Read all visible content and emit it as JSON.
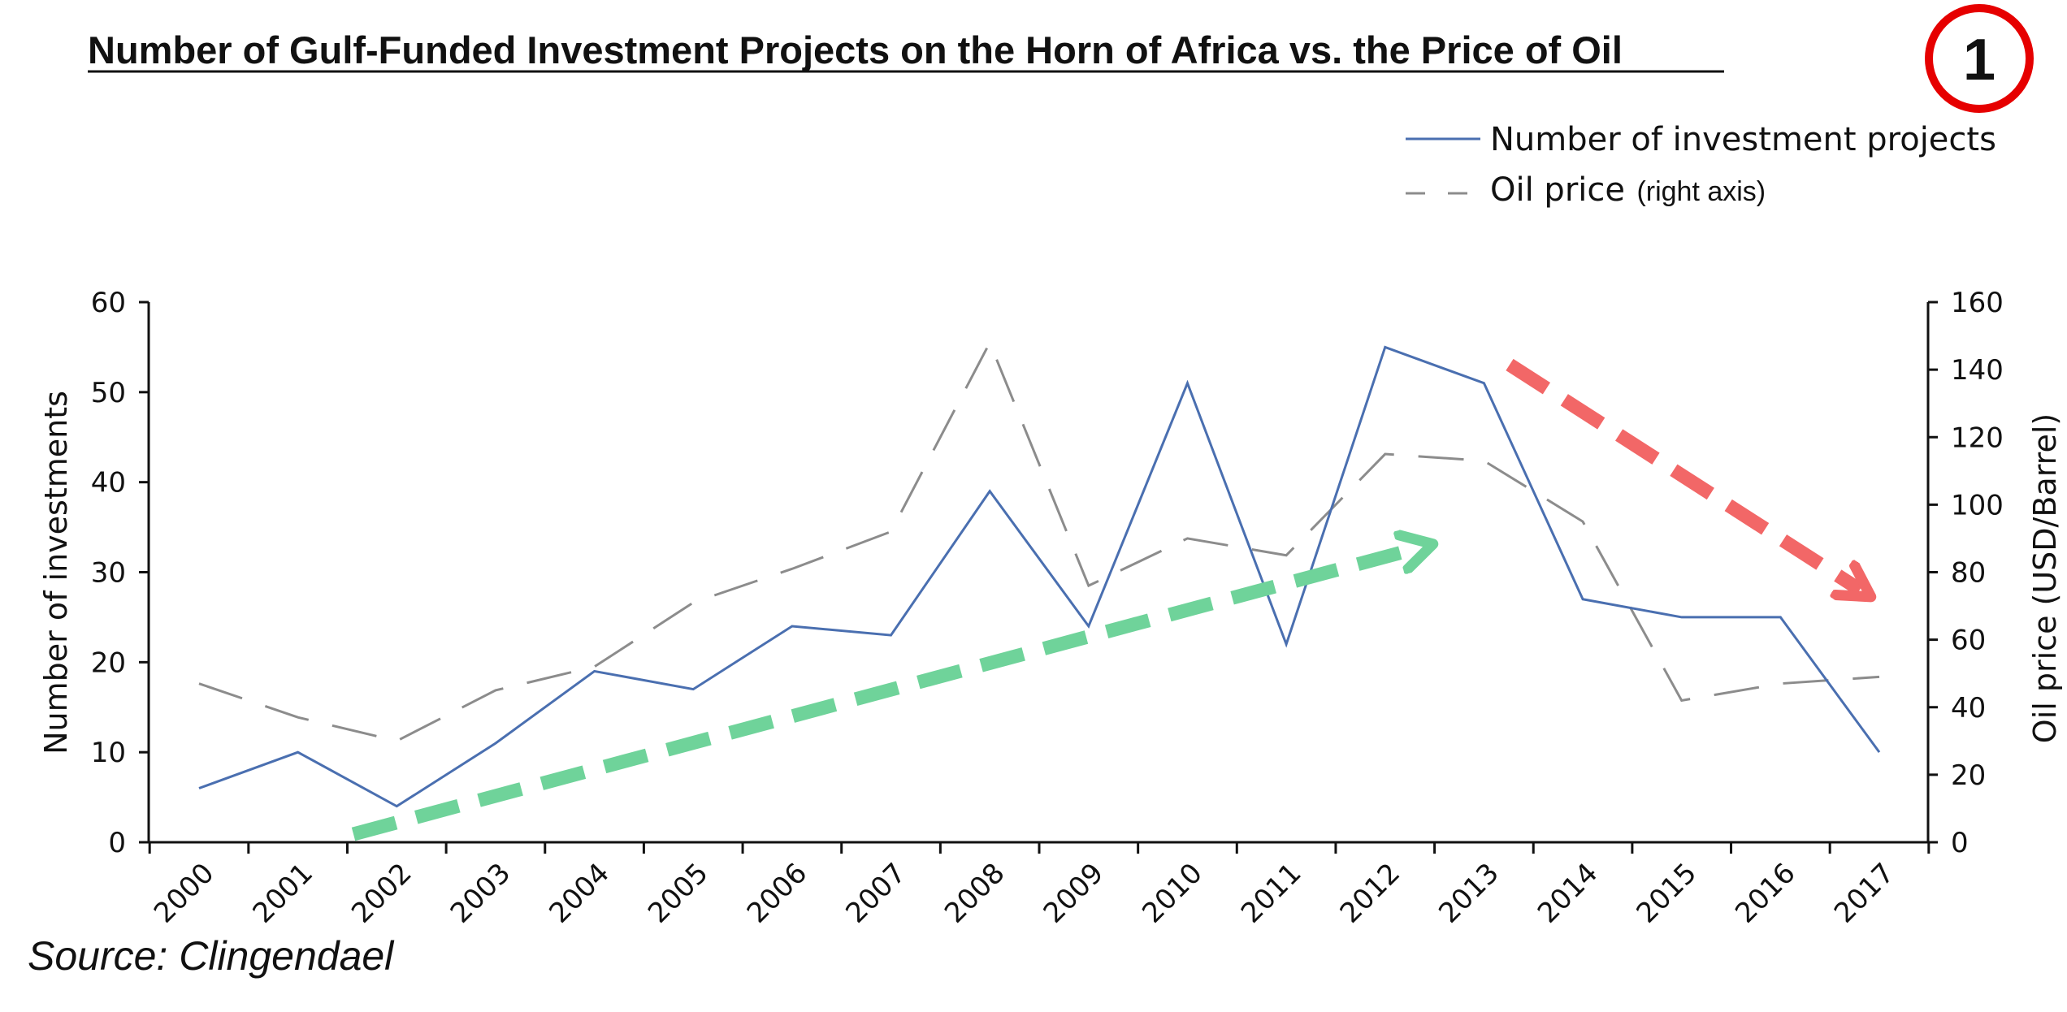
{
  "title": "Number of Gulf-Funded Investment Projects on the Horn of Africa vs. the Price of Oil",
  "badge": "1",
  "source": "Source: Clingendael",
  "colors": {
    "projects_line": "#4a6fb0",
    "oil_line": "#8c8c8c",
    "green_arrow": "#6fd39a",
    "red_arrow": "#f26767",
    "badge_ring": "#e60000"
  },
  "chart_data": {
    "type": "line",
    "x": [
      "2000",
      "2001",
      "2002",
      "2003",
      "2004",
      "2005",
      "2006",
      "2007",
      "2008",
      "2009",
      "2010",
      "2011",
      "2012",
      "2013",
      "2014",
      "2015",
      "2016",
      "2017"
    ],
    "series": [
      {
        "name": "Number of investment projects",
        "axis": "left",
        "style": "solid",
        "values": [
          6,
          10,
          4,
          11,
          19,
          17,
          24,
          23,
          39,
          24,
          51,
          22,
          55,
          51,
          27,
          25,
          25,
          10
        ]
      },
      {
        "name": "Oil price",
        "name_suffix": "(right axis)",
        "axis": "right",
        "style": "dashed",
        "values": [
          47,
          37,
          30,
          45,
          52,
          71,
          81,
          92,
          148,
          76,
          90,
          85,
          115,
          113,
          95,
          42,
          47,
          49
        ]
      }
    ],
    "ylabel": "Number of investments",
    "ylabel_right": "Oil price (USD/Barrel)",
    "ylim": [
      0,
      60
    ],
    "yticks": [
      0,
      10,
      20,
      30,
      40,
      50,
      60
    ],
    "ylim_right": [
      0,
      160
    ],
    "yticks_right": [
      0,
      20,
      40,
      60,
      80,
      100,
      120,
      140,
      160
    ],
    "grid": false,
    "legend_position": "top-right"
  }
}
